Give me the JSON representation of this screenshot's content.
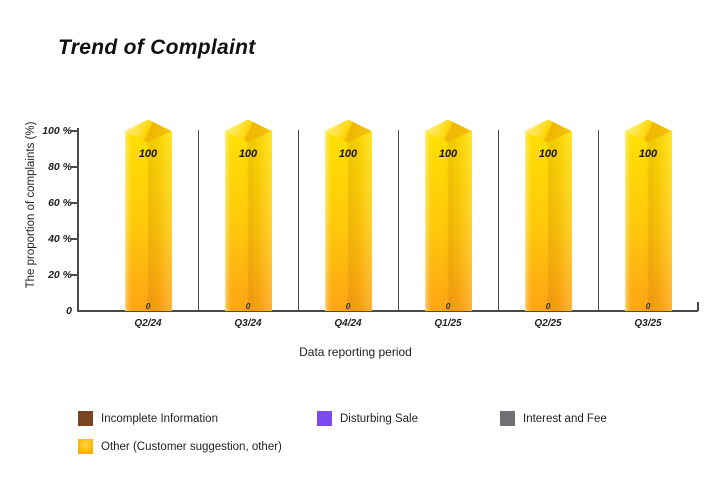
{
  "title": "Trend of Complaint",
  "y_axis": {
    "label": "The proportion of complaints (%)",
    "ticks": [
      {
        "label": "100 %",
        "value": 100
      },
      {
        "label": "80 %",
        "value": 80
      },
      {
        "label": "60 %",
        "value": 60
      },
      {
        "label": "40 %",
        "value": 40
      },
      {
        "label": "20 %",
        "value": 20
      },
      {
        "label": "0",
        "value": 0
      }
    ]
  },
  "x_axis": {
    "label": "Data reporting period"
  },
  "chart_data": {
    "type": "bar",
    "style": "3d-gradient-columns",
    "title": "Trend of Complaint",
    "xlabel": "Data reporting period",
    "ylabel": "The proportion of complaints (%)",
    "ylim": [
      0,
      100
    ],
    "grid": false,
    "legend_position": "bottom",
    "categories": [
      "Q2/24",
      "Q3/24",
      "Q4/24",
      "Q1/25",
      "Q2/25",
      "Q3/25"
    ],
    "series": [
      {
        "name": "Incomplete Information",
        "color": "#7A4322",
        "values": [
          0,
          0,
          0,
          0,
          0,
          0
        ]
      },
      {
        "name": "Disturbing Sale",
        "color": "#7C4BF0",
        "values": [
          0,
          0,
          0,
          0,
          0,
          0
        ]
      },
      {
        "name": "Interest and Fee",
        "color": "#6F6F74",
        "values": [
          0,
          0,
          0,
          0,
          0,
          0
        ]
      },
      {
        "name": "Other (Customer suggestion, other)",
        "color": "#FFC400",
        "values": [
          100,
          100,
          100,
          100,
          100,
          100
        ]
      }
    ],
    "bar_value_labels": [
      "100",
      "100",
      "100",
      "100",
      "100",
      "100"
    ],
    "zero_value_labels": [
      "0",
      "0",
      "0",
      "0",
      "0",
      "0"
    ]
  },
  "legend": {
    "items": [
      {
        "label": "Incomplete Information",
        "color": "#7A4322",
        "gradient": false
      },
      {
        "label": "Disturbing Sale",
        "color": "#7C4BF0",
        "gradient": false
      },
      {
        "label": "Interest and Fee",
        "color": "#6F6F74",
        "gradient": false
      },
      {
        "label": "Other (Customer suggestion, other)",
        "color": "#FFC400",
        "gradient": true
      }
    ]
  },
  "colors": {
    "bar_gradient_top": "#FFE003",
    "bar_gradient_bottom": "#FFA414",
    "bar_top_face_light": "#FFE23C",
    "bar_top_face_dark": "#EEB600",
    "axis_line": "#4A4A4A",
    "text": "#1C1C1C"
  }
}
